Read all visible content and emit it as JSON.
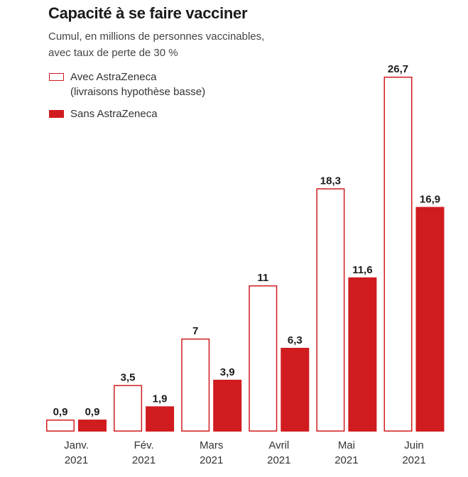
{
  "title": "Capacité à se faire vacciner",
  "subtitle": {
    "line1": "Cumul, en millions de personnes vaccinables,",
    "line2": "avec taux de perte de 30 %"
  },
  "legend": {
    "with_line1": "Avec AstraZeneca",
    "with_line2": "(livraisons hypothèse basse)",
    "without": "Sans AstraZeneca"
  },
  "colors": {
    "accent": "#d01c1f",
    "outline_fill": "#ffffff"
  },
  "chart_data": {
    "type": "bar",
    "title": "Capacité à se faire vacciner",
    "categories": [
      [
        "Janv.",
        "2021"
      ],
      [
        "Fév.",
        "2021"
      ],
      [
        "Mars",
        "2021"
      ],
      [
        "Avril",
        "2021"
      ],
      [
        "Mai",
        "2021"
      ],
      [
        "Juin",
        "2021"
      ]
    ],
    "series": [
      {
        "name": "Avec AstraZeneca (livraisons hypothèse basse)",
        "style": "outline",
        "values": [
          0.9,
          3.5,
          7,
          11,
          18.3,
          26.7
        ],
        "labels": [
          "0,9",
          "3,5",
          "7",
          "11",
          "18,3",
          "26,7"
        ]
      },
      {
        "name": "Sans AstraZeneca",
        "style": "filled",
        "values": [
          0.9,
          1.9,
          3.9,
          6.3,
          11.6,
          16.9
        ],
        "labels": [
          "0,9",
          "1,9",
          "3,9",
          "6,3",
          "11,6",
          "16,9"
        ]
      }
    ],
    "ylim": [
      0,
      26.7
    ],
    "grid": false,
    "legend_position": "top-left",
    "xlabel": "",
    "ylabel": ""
  }
}
